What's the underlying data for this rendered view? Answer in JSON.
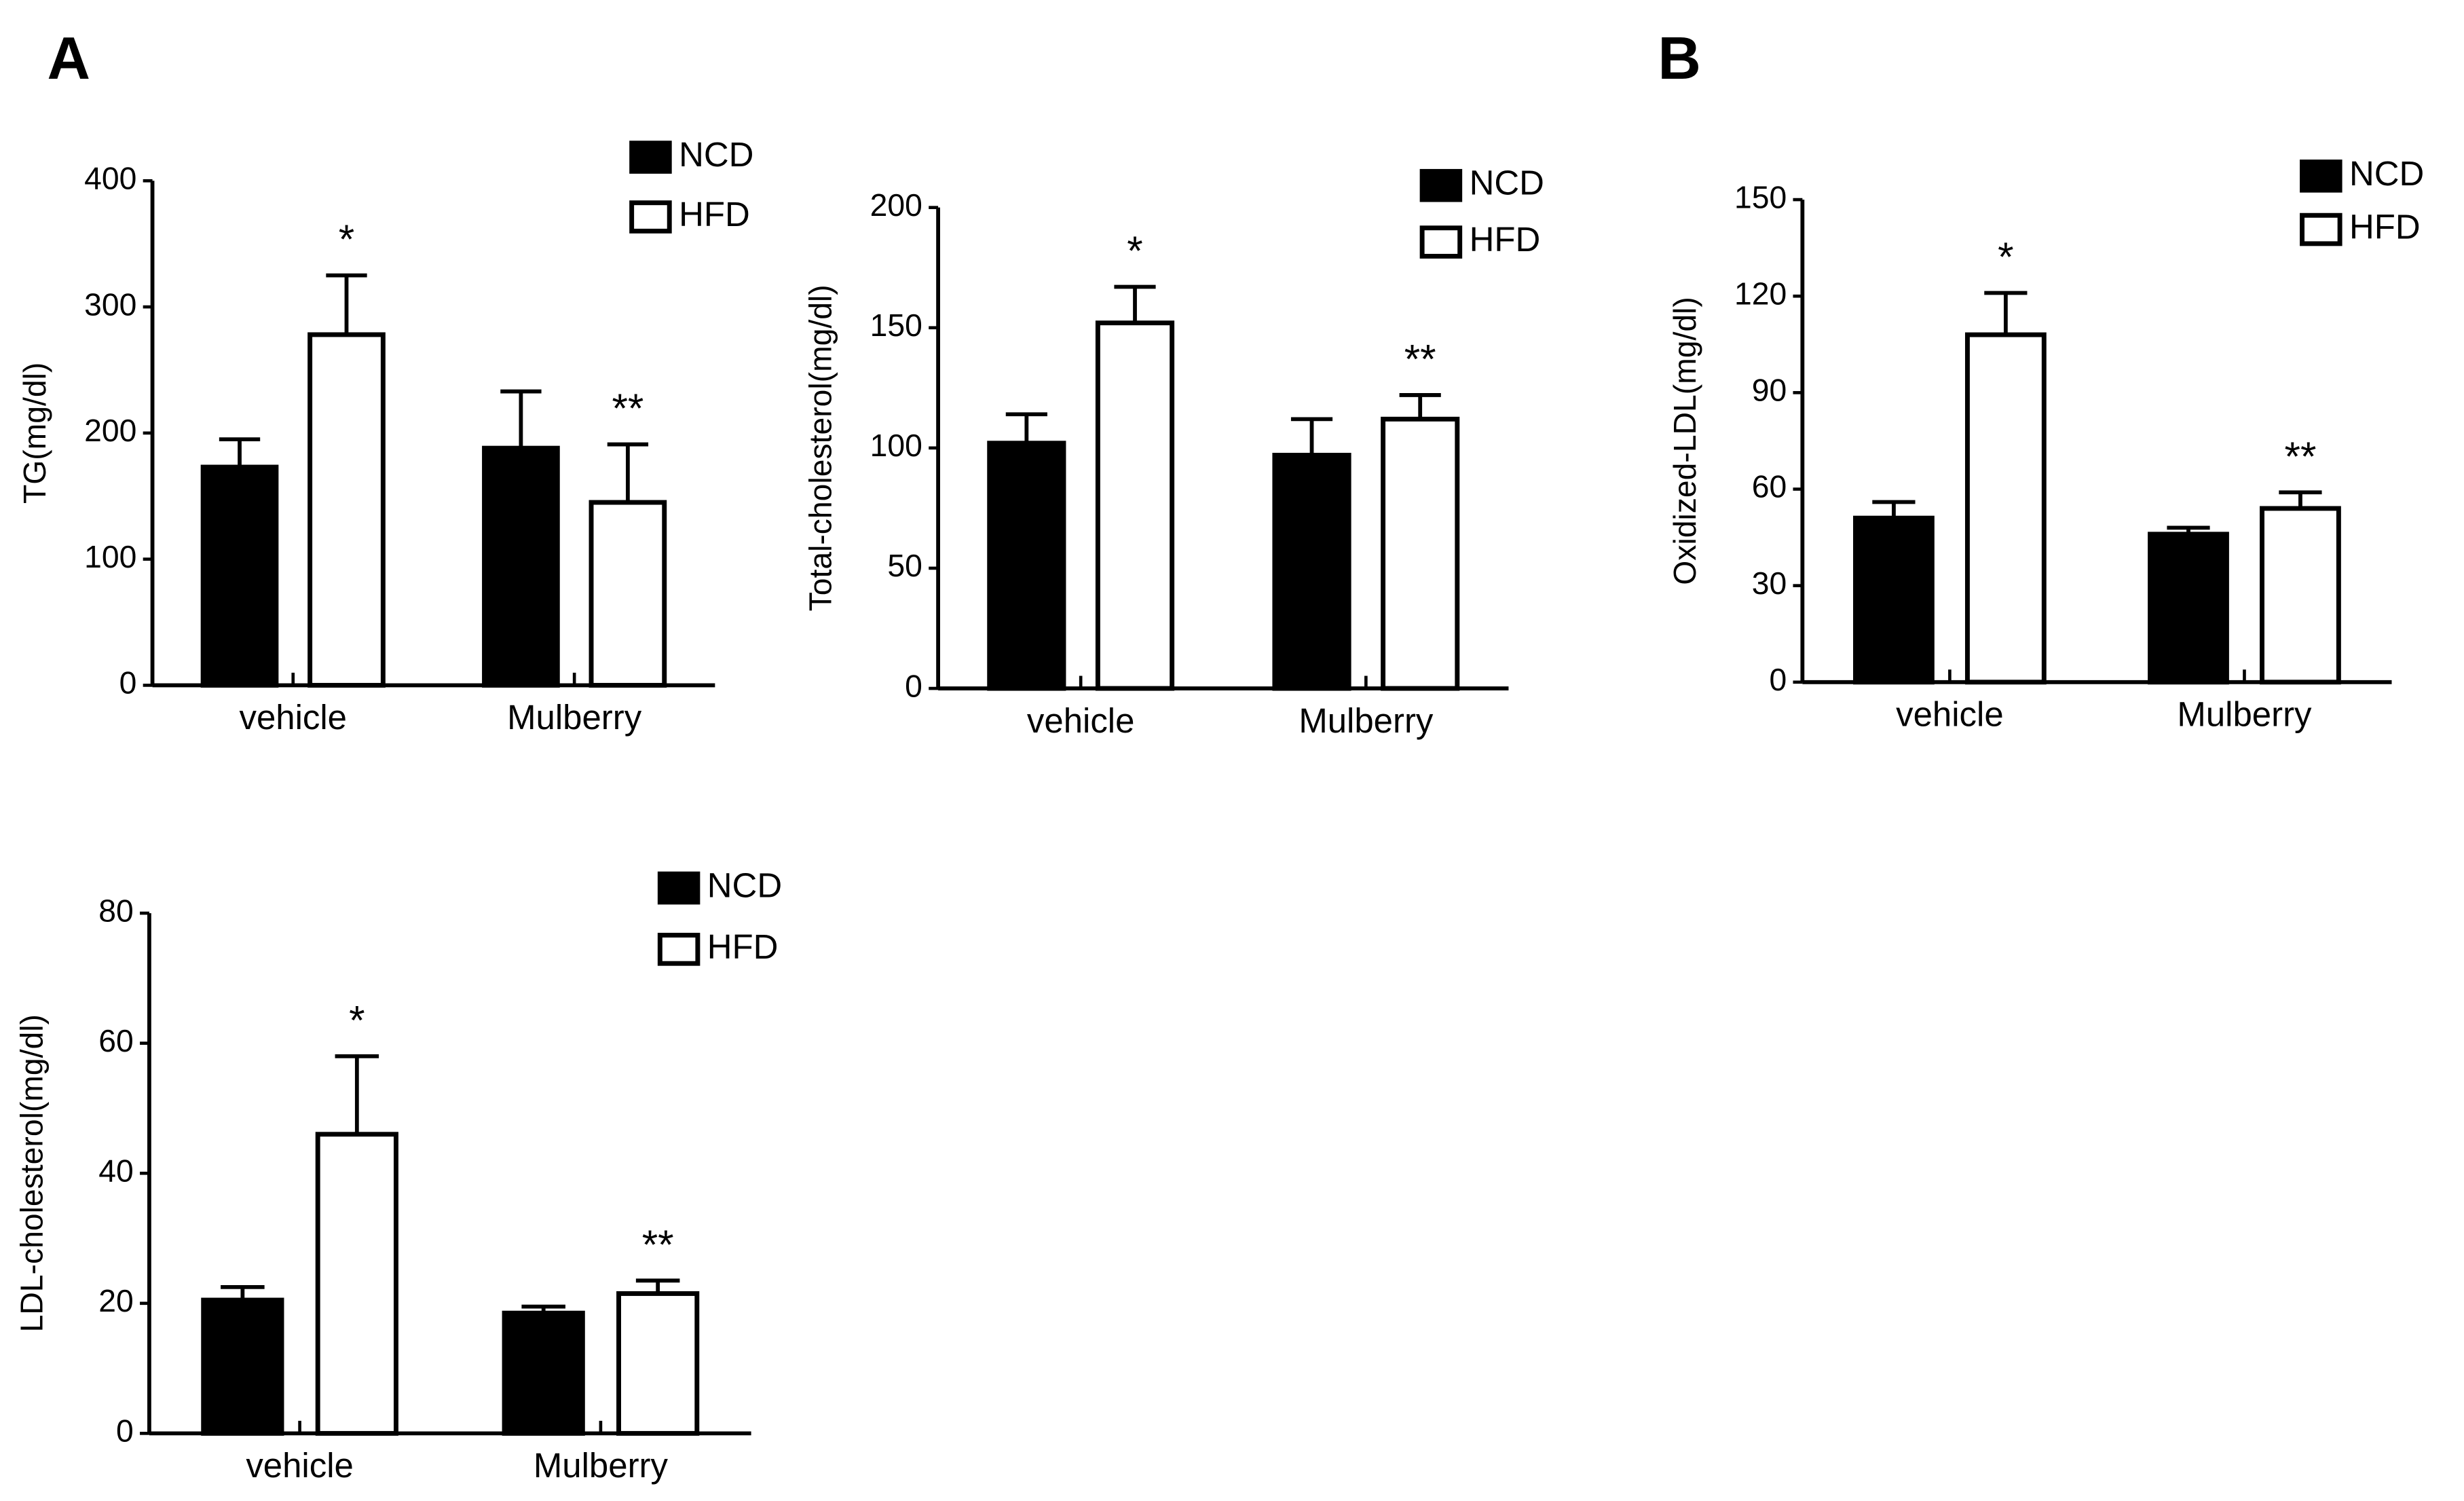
{
  "panel_labels": [
    "A",
    "B"
  ],
  "chart_data": [
    {
      "type": "bar",
      "y_label": "TG(mg/dl)",
      "categories": [
        "vehicle",
        "Mulberry"
      ],
      "series": [
        {
          "name": "NCD",
          "color": "#000000",
          "values": [
            173,
            188
          ],
          "errors": [
            22,
            45
          ]
        },
        {
          "name": "HFD",
          "color": "#ffffff",
          "values": [
            278,
            145
          ],
          "errors": [
            47,
            46
          ],
          "annotations": [
            "*",
            "**"
          ]
        }
      ],
      "ylim": [
        0,
        400
      ],
      "yticks": [
        0,
        100,
        200,
        300,
        400
      ]
    },
    {
      "type": "bar",
      "y_label": "Total-cholesterol(mg/dl)",
      "categories": [
        "vehicle",
        "Mulberry"
      ],
      "series": [
        {
          "name": "NCD",
          "color": "#000000",
          "values": [
            102,
            97
          ],
          "errors": [
            12,
            15
          ]
        },
        {
          "name": "HFD",
          "color": "#ffffff",
          "values": [
            152,
            112
          ],
          "errors": [
            15,
            10
          ],
          "annotations": [
            "*",
            "**"
          ]
        }
      ],
      "ylim": [
        0,
        200
      ],
      "yticks": [
        0,
        50,
        100,
        150,
        200
      ]
    },
    {
      "type": "bar",
      "y_label": "Oxidized-LDL(mg/dl)",
      "categories": [
        "vehicle",
        "Mulberry"
      ],
      "series": [
        {
          "name": "NCD",
          "color": "#000000",
          "values": [
            51,
            46
          ],
          "errors": [
            5,
            2
          ]
        },
        {
          "name": "HFD",
          "color": "#ffffff",
          "values": [
            108,
            54
          ],
          "errors": [
            13,
            5
          ],
          "annotations": [
            "*",
            "**"
          ]
        }
      ],
      "ylim": [
        0,
        150
      ],
      "yticks": [
        0,
        30,
        60,
        90,
        120,
        150
      ]
    },
    {
      "type": "bar",
      "y_label": "LDL-cholesterol(mg/dl)",
      "categories": [
        "vehicle",
        "Mulberry"
      ],
      "series": [
        {
          "name": "NCD",
          "color": "#000000",
          "values": [
            20.5,
            18.5
          ],
          "errors": [
            2,
            1
          ]
        },
        {
          "name": "HFD",
          "color": "#ffffff",
          "values": [
            46,
            21.5
          ],
          "errors": [
            12,
            2
          ],
          "annotations": [
            "*",
            "**"
          ]
        }
      ],
      "ylim": [
        0,
        80
      ],
      "yticks": [
        0,
        20,
        40,
        60,
        80
      ]
    }
  ]
}
